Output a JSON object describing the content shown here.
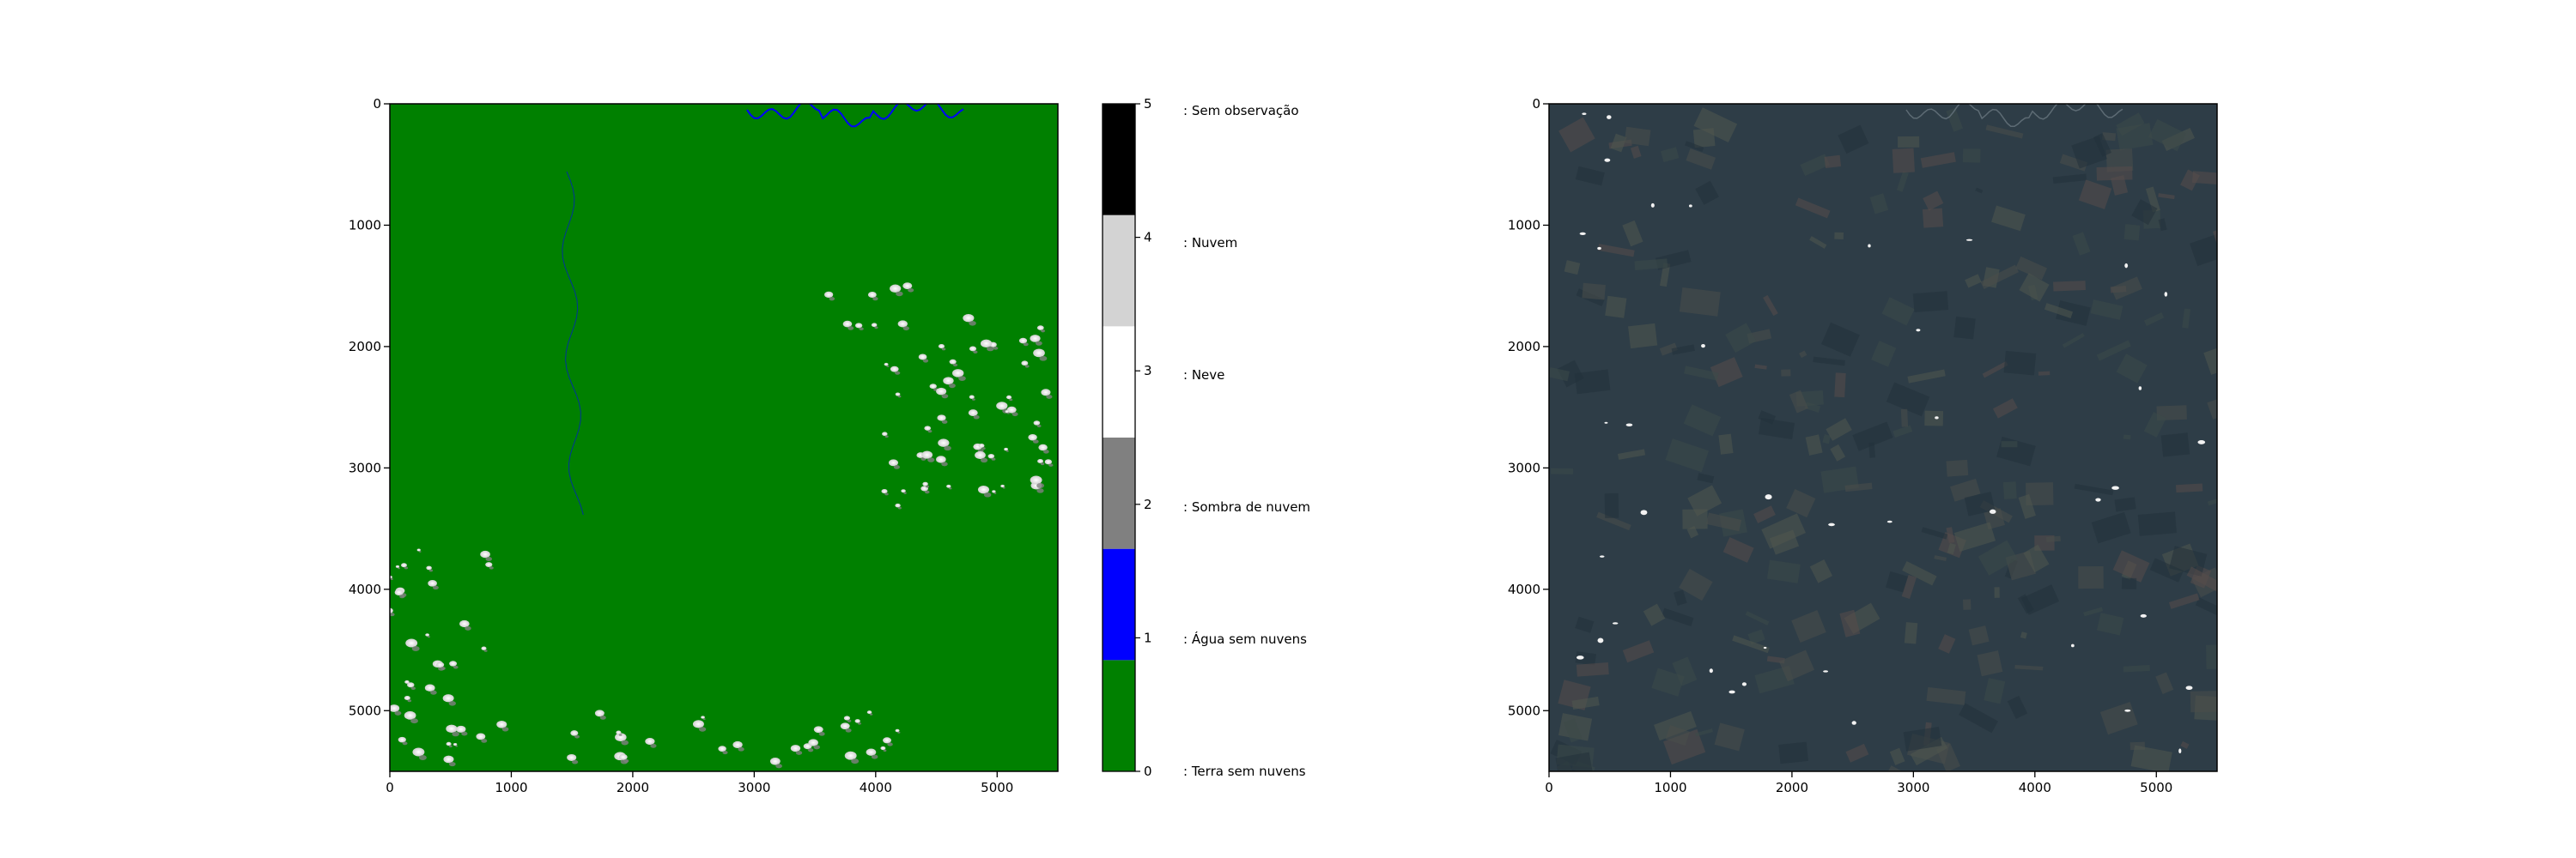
{
  "chart_data": [
    {
      "type": "heatmap",
      "title": "",
      "xlabel": "",
      "ylabel": "",
      "xlim": [
        0,
        5500
      ],
      "ylim": [
        5500,
        0
      ],
      "xticks": [
        0,
        1000,
        2000,
        3000,
        4000,
        5000
      ],
      "yticks": [
        0,
        1000,
        2000,
        3000,
        4000,
        5000
      ],
      "grid": false,
      "colorbar": {
        "range": [
          0,
          5
        ],
        "ticks": [
          0,
          1,
          2,
          3,
          4,
          5
        ],
        "classes": [
          {
            "value": 0,
            "label": ": Terra sem nuvens",
            "color": "#008000"
          },
          {
            "value": 1,
            "label": ": Água sem nuvens",
            "color": "#0000ff"
          },
          {
            "value": 2,
            "label": ": Sombra de nuvem",
            "color": "#808080"
          },
          {
            "value": 3,
            "label": ": Neve",
            "color": "#ffffff"
          },
          {
            "value": 4,
            "label": ": Nuvem",
            "color": "#d3d3d3"
          },
          {
            "value": 5,
            "label": ": Sem observação",
            "color": "#000000"
          }
        ]
      }
    },
    {
      "type": "heatmap",
      "title": "",
      "xlabel": "",
      "ylabel": "",
      "xlim": [
        0,
        5500
      ],
      "ylim": [
        5500,
        0
      ],
      "xticks": [
        0,
        1000,
        2000,
        3000,
        4000,
        5000
      ],
      "yticks": [
        0,
        1000,
        2000,
        3000,
        4000,
        5000
      ],
      "grid": false,
      "base_color": "#2e3d47"
    }
  ]
}
